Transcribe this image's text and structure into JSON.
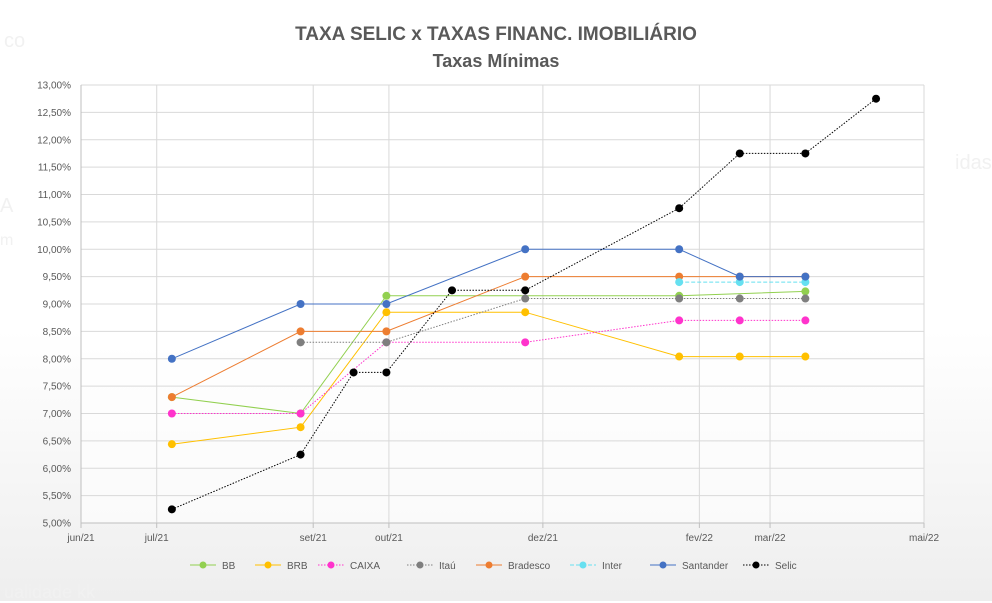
{
  "background_text": [
    "co",
    "A",
    "m",
    "idas",
    "ualidade kk"
  ],
  "chart_data": {
    "type": "line",
    "title": "TAXA SELIC x TAXAS FINANC. IMOBILIÁRIO",
    "subtitle": "Taxas Mínimas",
    "xlabel": "",
    "ylabel": "",
    "x_ticks": [
      "jun/21",
      "jul/21",
      "set/21",
      "out/21",
      "dez/21",
      "fev/22",
      "mar/22",
      "mai/22"
    ],
    "xlim": [
      "2021-06-01",
      "2022-05-01"
    ],
    "y_ticks": [
      "5,00%",
      "5,50%",
      "6,00%",
      "6,50%",
      "7,00%",
      "7,50%",
      "8,00%",
      "8,50%",
      "9,00%",
      "9,50%",
      "10,00%",
      "10,50%",
      "11,00%",
      "11,50%",
      "12,00%",
      "12,50%",
      "13,00%"
    ],
    "ylim": [
      5.0,
      13.0
    ],
    "y_unit": "%",
    "grid": true,
    "legend_position": "bottom",
    "series": [
      {
        "name": "BB",
        "color": "#92d050",
        "dash": "solid",
        "x": [
          "2021-07-07",
          "2021-08-27",
          "2021-09-30",
          "2022-01-24",
          "2022-03-15"
        ],
        "y": [
          7.3,
          7.0,
          9.15,
          9.15,
          9.23
        ]
      },
      {
        "name": "BRB",
        "color": "#ffc000",
        "dash": "solid",
        "x": [
          "2021-07-07",
          "2021-08-27",
          "2021-09-30",
          "2021-11-24",
          "2022-01-24",
          "2022-02-17",
          "2022-03-15"
        ],
        "y": [
          6.44,
          6.75,
          8.85,
          8.85,
          8.04,
          8.04,
          8.04
        ]
      },
      {
        "name": "CAIXA",
        "color": "#ff33cc",
        "dash": "dotted",
        "x": [
          "2021-07-07",
          "2021-08-27",
          "2021-09-30",
          "2021-11-24",
          "2022-01-24",
          "2022-02-17",
          "2022-03-15"
        ],
        "y": [
          7.0,
          7.0,
          8.3,
          8.3,
          8.7,
          8.7,
          8.7
        ]
      },
      {
        "name": "Itaú",
        "color": "#7f7f7f",
        "dash": "dotted",
        "x": [
          "2021-08-27",
          "2021-09-30",
          "2021-11-24",
          "2022-01-24",
          "2022-02-17",
          "2022-03-15"
        ],
        "y": [
          8.3,
          8.3,
          9.1,
          9.1,
          9.1,
          9.1
        ]
      },
      {
        "name": "Bradesco",
        "color": "#ed7d31",
        "dash": "solid",
        "x": [
          "2021-07-07",
          "2021-08-27",
          "2021-09-30",
          "2021-11-24",
          "2022-01-24",
          "2022-02-17",
          "2022-03-15"
        ],
        "y": [
          7.3,
          8.5,
          8.5,
          9.5,
          9.5,
          9.5,
          9.5
        ]
      },
      {
        "name": "Inter",
        "color": "#66e0f0",
        "dash": "dashed",
        "x": [
          "2022-01-24",
          "2022-02-17",
          "2022-03-15"
        ],
        "y": [
          9.4,
          9.4,
          9.4
        ]
      },
      {
        "name": "Santander",
        "color": "#4472c4",
        "dash": "solid",
        "x": [
          "2021-07-07",
          "2021-08-27",
          "2021-09-30",
          "2021-11-24",
          "2022-01-24",
          "2022-02-17",
          "2022-03-15"
        ],
        "y": [
          8.0,
          9.0,
          9.0,
          10.0,
          10.0,
          9.5,
          9.5
        ]
      },
      {
        "name": "Selic",
        "color": "#000000",
        "dash": "dotted",
        "x": [
          "2021-07-07",
          "2021-08-27",
          "2021-09-17",
          "2021-09-30",
          "2021-10-26",
          "2021-11-24",
          "2022-01-24",
          "2022-02-17",
          "2022-03-15",
          "2022-04-12"
        ],
        "y": [
          5.25,
          6.25,
          7.75,
          7.75,
          9.25,
          9.25,
          10.75,
          11.75,
          11.75,
          12.75
        ]
      }
    ]
  }
}
